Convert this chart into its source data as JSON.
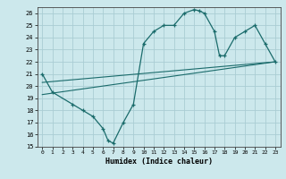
{
  "title": "",
  "xlabel": "Humidex (Indice chaleur)",
  "xlim": [
    -0.5,
    23.5
  ],
  "ylim": [
    15,
    26.5
  ],
  "yticks": [
    15,
    16,
    17,
    18,
    19,
    20,
    21,
    22,
    23,
    24,
    25,
    26
  ],
  "xticks": [
    0,
    1,
    2,
    3,
    4,
    5,
    6,
    7,
    8,
    9,
    10,
    11,
    12,
    13,
    14,
    15,
    16,
    17,
    18,
    19,
    20,
    21,
    22,
    23
  ],
  "bg_color": "#cce8ec",
  "line_color": "#1a6b6b",
  "grid_color": "#aacdd4",
  "series1_x": [
    0,
    1,
    3,
    4,
    5,
    6,
    6.5,
    7,
    8,
    9,
    10,
    11,
    12,
    13,
    14,
    15,
    15.5,
    16,
    17,
    17.5,
    18,
    19,
    20,
    21,
    22,
    23
  ],
  "series1_y": [
    21,
    19.5,
    18.5,
    18,
    17.5,
    16.5,
    15.5,
    15.3,
    17.0,
    18.5,
    23.5,
    24.5,
    25.0,
    25.0,
    26.0,
    26.3,
    26.2,
    26.0,
    24.5,
    22.5,
    22.5,
    24.0,
    24.5,
    25.0,
    23.5,
    22.0
  ],
  "series2_x": [
    0,
    23
  ],
  "series2_y": [
    19.3,
    22.0
  ],
  "series3_x": [
    0,
    23
  ],
  "series3_y": [
    20.3,
    22.0
  ]
}
